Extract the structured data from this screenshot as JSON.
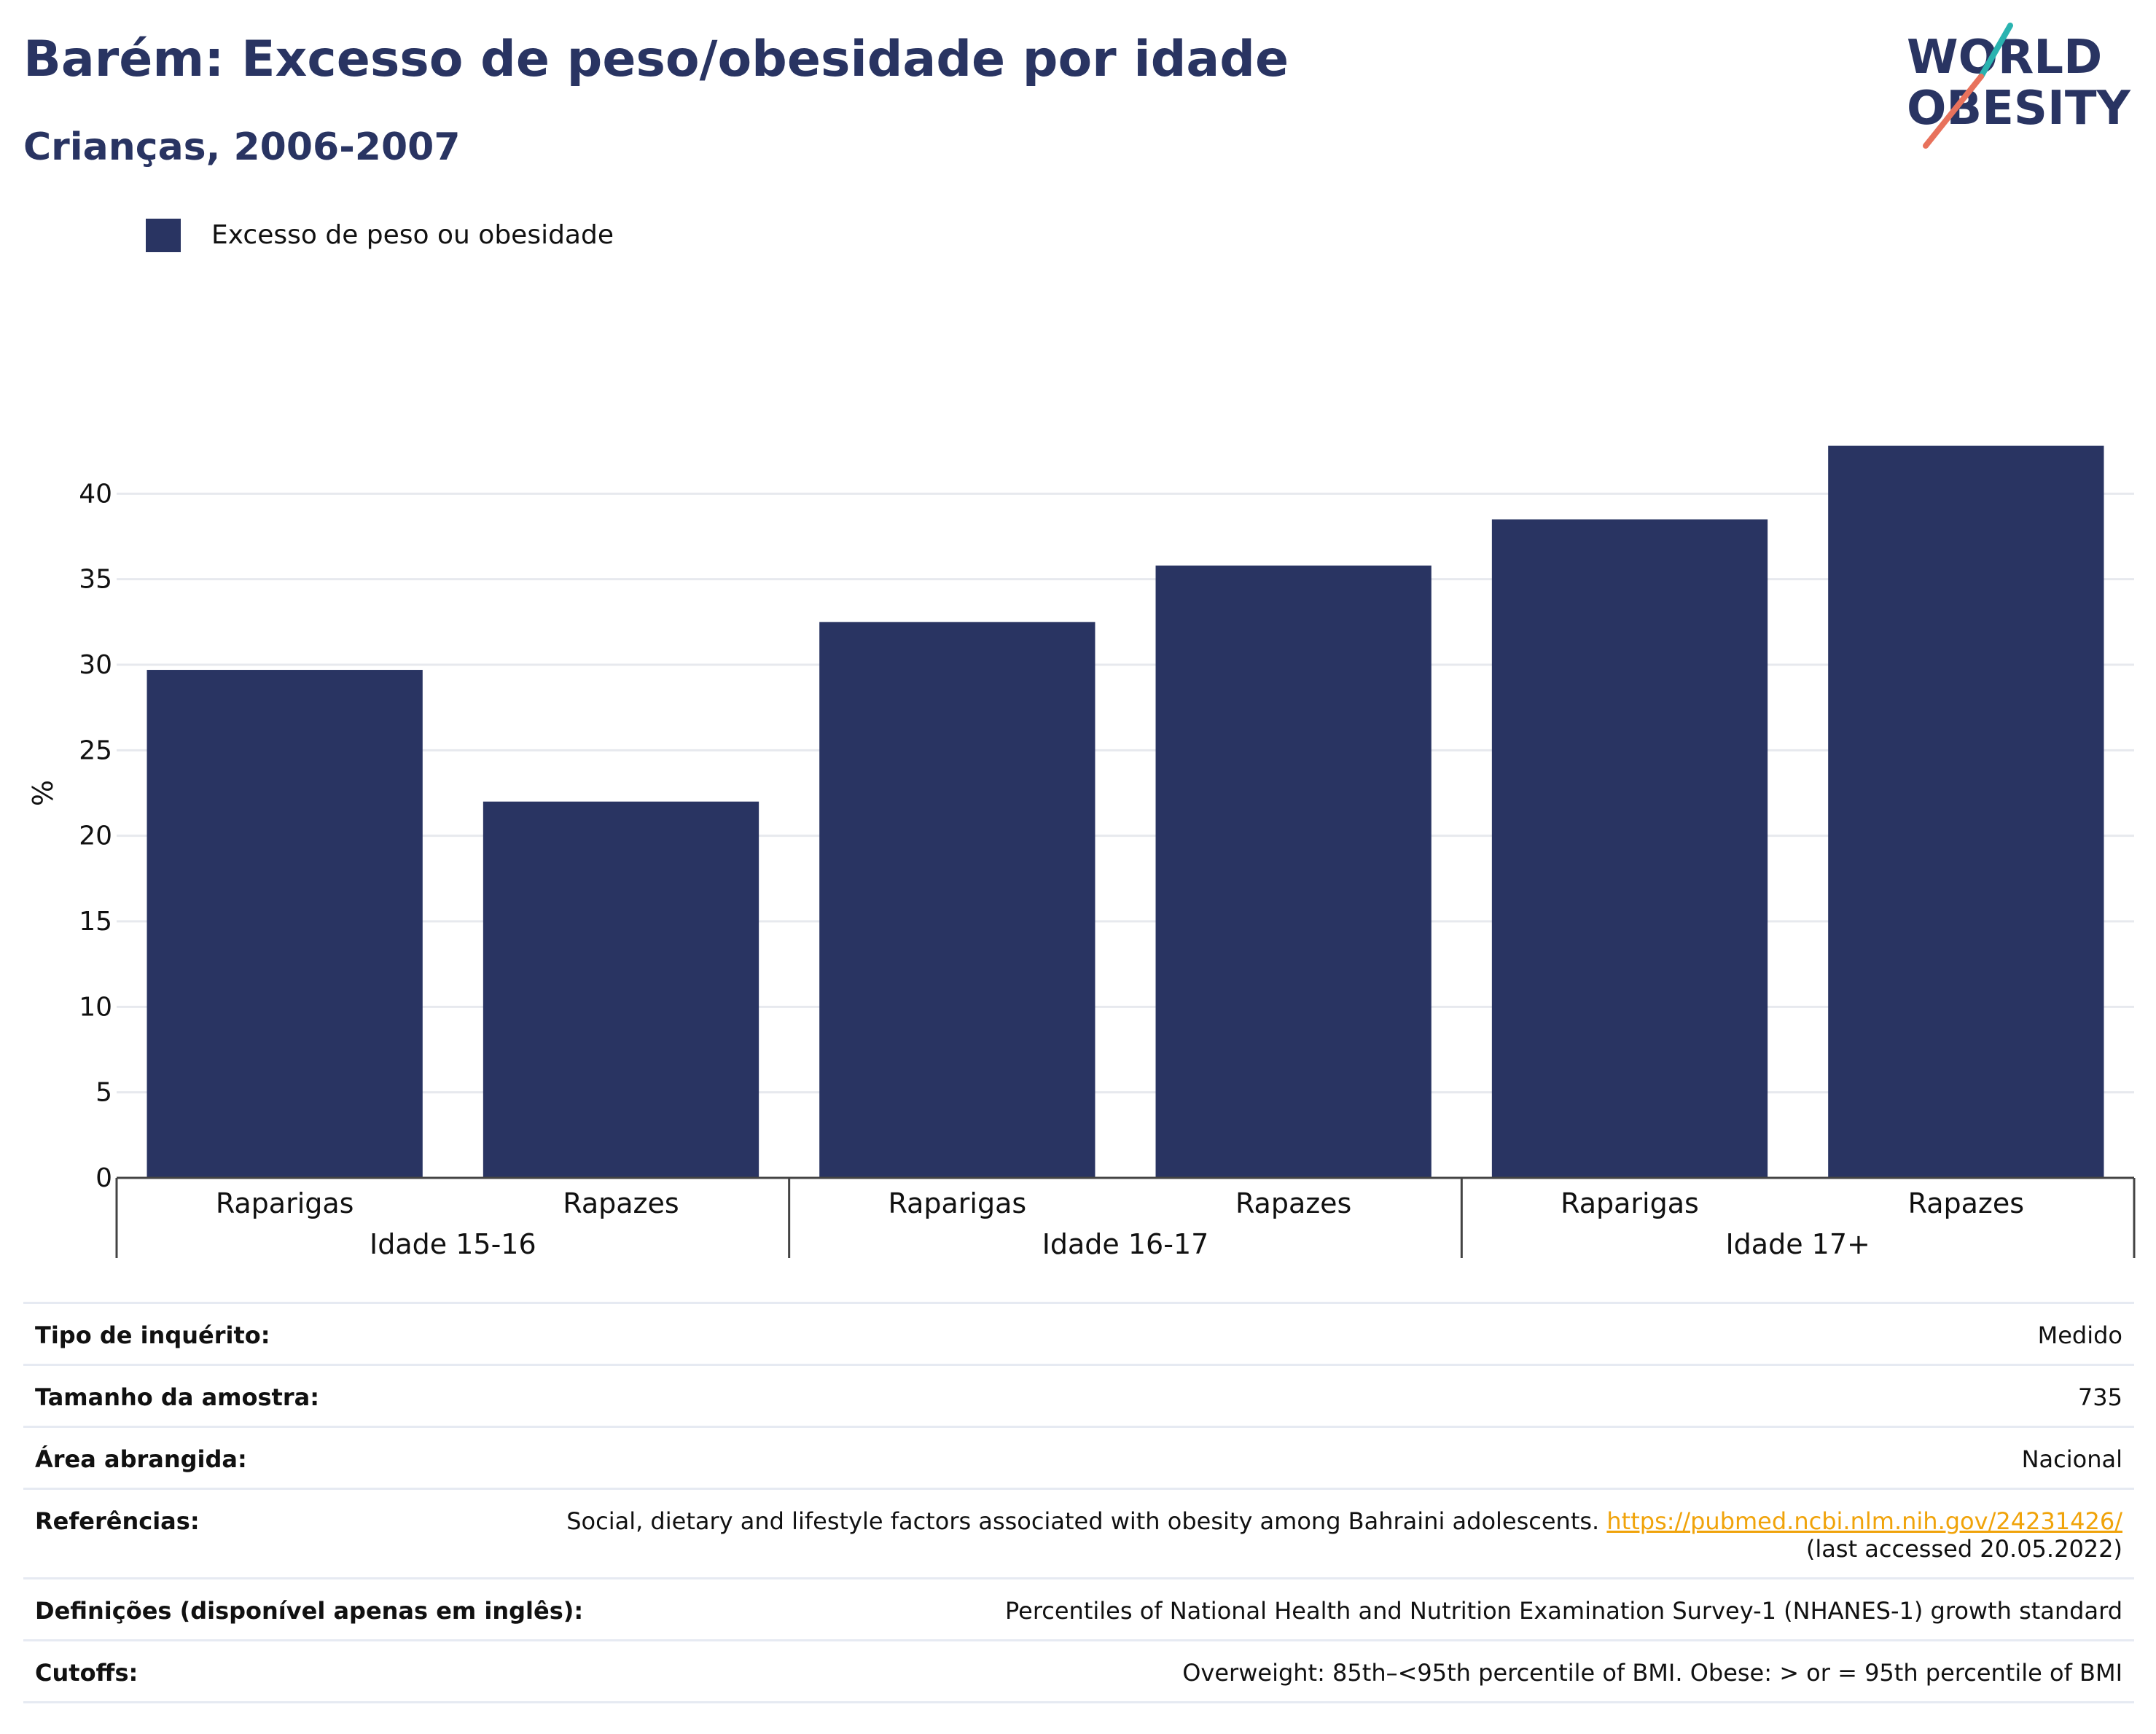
{
  "title": "Barém: Excesso de peso/obesidade por idade",
  "subtitle": "Crianças, 2006-2007",
  "logo": {
    "line1": "WORLD",
    "line2": "OBESITY",
    "accent_colors": [
      "#2ab3b0",
      "#e8725c"
    ],
    "text_color": "#293462"
  },
  "legend": {
    "label": "Excesso de peso ou obesidade",
    "color": "#293462"
  },
  "chart_data": {
    "type": "bar",
    "title": "Barém: Excesso de peso/obesidade por idade",
    "subtitle": "Crianças, 2006-2007",
    "ylabel": "%",
    "ylim": [
      0,
      45
    ],
    "yticks": [
      0,
      5,
      10,
      15,
      20,
      25,
      30,
      35,
      40
    ],
    "grid": true,
    "legend_position": "top-left",
    "bar_color": "#293462",
    "groups": [
      {
        "label": "Idade 15-16",
        "categories": [
          "Raparigas",
          "Rapazes"
        ],
        "values": [
          29.7,
          22.0
        ]
      },
      {
        "label": "Idade 16-17",
        "categories": [
          "Raparigas",
          "Rapazes"
        ],
        "values": [
          32.5,
          35.8
        ]
      },
      {
        "label": "Idade 17+",
        "categories": [
          "Raparigas",
          "Rapazes"
        ],
        "values": [
          38.5,
          42.8
        ]
      }
    ],
    "series": [
      {
        "name": "Excesso de peso ou obesidade",
        "values": [
          29.7,
          22.0,
          32.5,
          35.8,
          38.5,
          42.8
        ]
      }
    ]
  },
  "info": {
    "survey_type": {
      "label": "Tipo de inquérito:",
      "value": "Medido"
    },
    "sample_size": {
      "label": "Tamanho da amostra:",
      "value": "735"
    },
    "area": {
      "label": "Área abrangida:",
      "value": "Nacional"
    },
    "references": {
      "label": "Referências:",
      "text": "Social, dietary and lifestyle factors associated with obesity among Bahraini adolescents.",
      "link": "https://pubmed.ncbi.nlm.nih.gov/24231426/",
      "accessed": "(last accessed 20.05.2022)"
    },
    "definitions": {
      "label": "Definições (disponível apenas em inglês):",
      "value": "Percentiles of National Health and Nutrition Examination Survey-1 (NHANES-1) growth standard"
    },
    "cutoffs": {
      "label": "Cutoffs:",
      "value": "Overweight: 85th–<95th percentile of BMI. Obese: > or = 95th percentile of BMI"
    }
  }
}
